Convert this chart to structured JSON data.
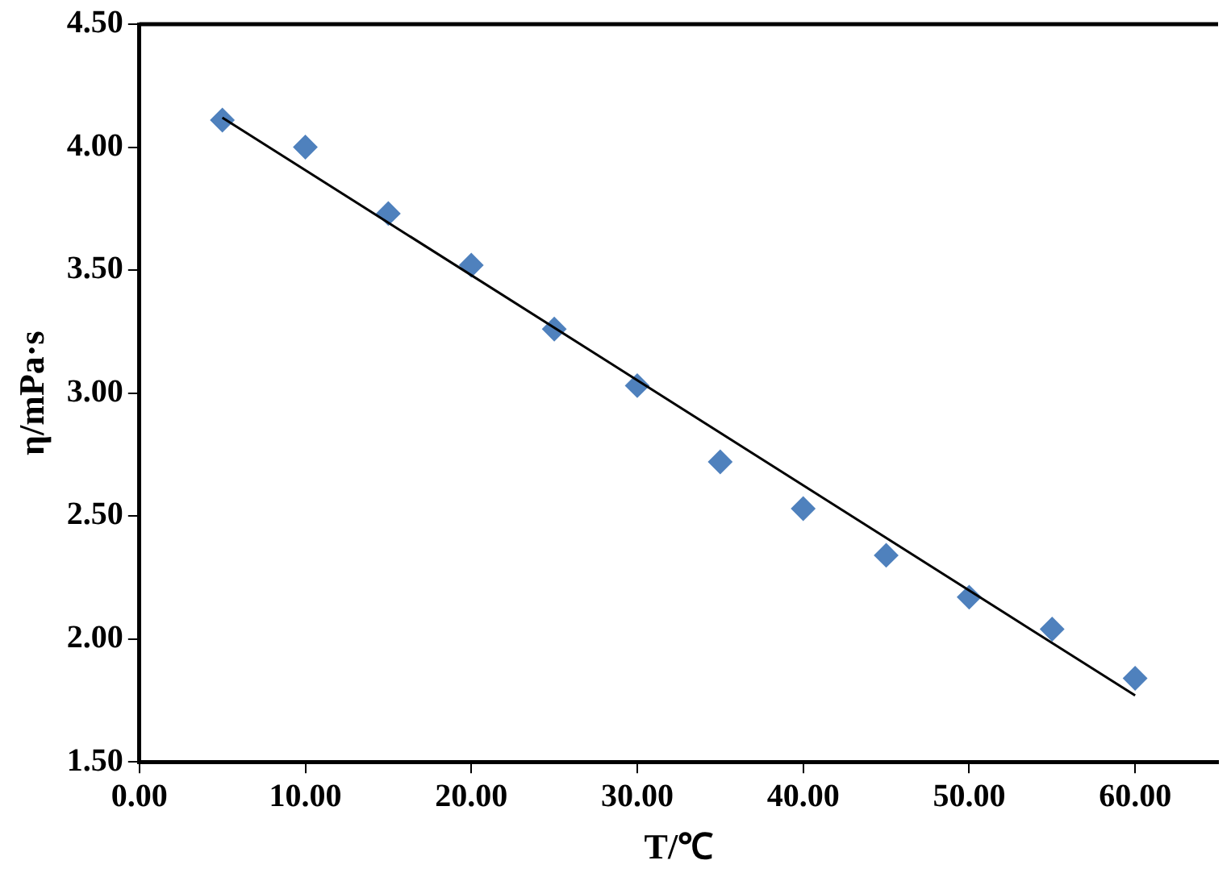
{
  "chart_data": {
    "type": "scatter",
    "xlabel": "T/℃",
    "ylabel": "η/mPa·s",
    "xlim": [
      0,
      65
    ],
    "xticks": [
      {
        "value": 0,
        "label": "0.00"
      },
      {
        "value": 10,
        "label": "10.00"
      },
      {
        "value": 20,
        "label": "20.00"
      },
      {
        "value": 30,
        "label": "30.00"
      },
      {
        "value": 40,
        "label": "40.00"
      },
      {
        "value": 50,
        "label": "50.00"
      },
      {
        "value": 60,
        "label": "60.00"
      }
    ],
    "ylim": [
      1.5,
      4.5
    ],
    "yticks": [
      {
        "value": 1.5,
        "label": "1.50"
      },
      {
        "value": 2,
        "label": "2.00"
      },
      {
        "value": 2.5,
        "label": "2.50"
      },
      {
        "value": 3,
        "label": "3.00"
      },
      {
        "value": 3.5,
        "label": "3.50"
      },
      {
        "value": 4,
        "label": "4.00"
      },
      {
        "value": 4.5,
        "label": "4.50"
      }
    ],
    "grid": false,
    "legend": false,
    "series": [
      {
        "color": "#4f81bd",
        "marker": "diamond",
        "x": [
          5,
          10,
          15,
          20,
          25,
          30,
          35,
          40,
          45,
          50,
          55,
          60
        ],
        "values": [
          4.11,
          4.0,
          3.73,
          3.52,
          3.26,
          3.03,
          2.72,
          2.53,
          2.34,
          2.17,
          2.04,
          1.84
        ]
      },
      {
        "type": "line",
        "color": "#000000",
        "marker": "none",
        "line_style": "solid",
        "x": [
          5,
          60
        ],
        "values": [
          4.12,
          1.77
        ]
      }
    ]
  }
}
